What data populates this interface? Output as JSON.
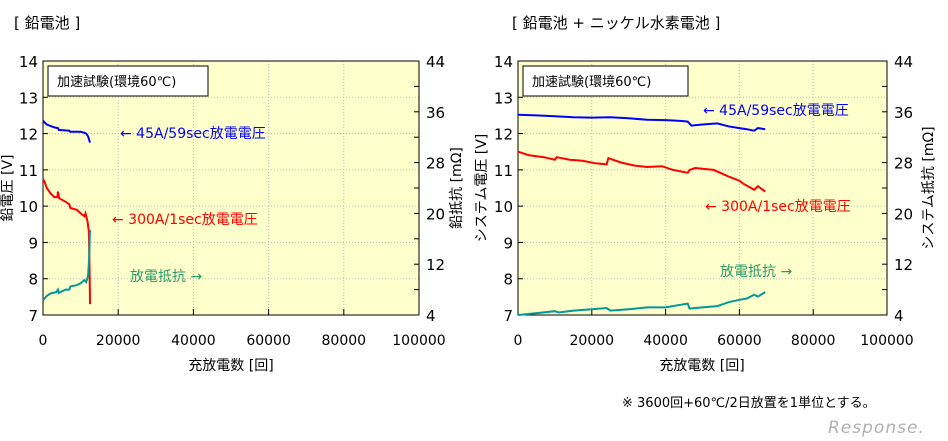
{
  "panels": [
    {
      "title": "[ 鉛電池 ]"
    },
    {
      "title": "[ 鉛電池 + ニッケル水素電池 ]"
    }
  ],
  "footnote": "※ 3600回+60℃/2日放置を1単位とする。",
  "watermark": "Response.",
  "colors": {
    "plot_bg": "#ffffcc",
    "v45": "#0000ff",
    "v300": "#ff0000",
    "resistance": "#009999",
    "label_resistance": "#2a9a6a"
  },
  "chart_data": [
    {
      "type": "line",
      "title": "[ 鉛電池 ]",
      "box_label": "加速試験(環境60℃)",
      "xlabel": "充放電数 [回]",
      "ylabel": "鉛電圧 [V]",
      "y2label": "鉛抵抗 [mΩ]",
      "xlim": [
        0,
        100000
      ],
      "xticks": [
        "0",
        "20000",
        "40000",
        "60000",
        "80000",
        "100000"
      ],
      "ylim": [
        7,
        14
      ],
      "yticks": [
        "7",
        "8",
        "9",
        "10",
        "11",
        "12",
        "13",
        "14"
      ],
      "y2lim": [
        4,
        44
      ],
      "y2ticks": [
        "4",
        "12",
        "20",
        "28",
        "36",
        "44"
      ],
      "grid": true,
      "series": [
        {
          "name": "45A/59sec放電電圧",
          "label": "← 45A/59sec放電電圧",
          "axis": "left",
          "color": "#0000ff",
          "x": [
            0,
            1000,
            3000,
            4000,
            4200,
            7000,
            7200,
            10000,
            11000,
            11500,
            12000,
            12500
          ],
          "y": [
            12.35,
            12.25,
            12.17,
            12.15,
            12.1,
            12.08,
            12.05,
            12.05,
            12.02,
            12.0,
            11.92,
            11.75
          ]
        },
        {
          "name": "300A/1sec放電電圧",
          "label": "← 300A/1sec放電電圧",
          "axis": "left",
          "color": "#ff0000",
          "x": [
            0,
            500,
            1000,
            2000,
            3000,
            3800,
            4000,
            4300,
            6000,
            7000,
            7300,
            9000,
            10000,
            11000,
            11300,
            11800,
            12200,
            12350,
            12450,
            12500
          ],
          "y": [
            10.75,
            10.65,
            10.5,
            10.35,
            10.25,
            10.25,
            10.4,
            10.22,
            10.12,
            10.05,
            9.95,
            9.9,
            9.8,
            9.72,
            9.8,
            9.6,
            9.3,
            8.5,
            7.8,
            7.3
          ]
        },
        {
          "name": "放電抵抗",
          "label": "放電抵抗 →",
          "axis": "right",
          "color": "#009999",
          "x": [
            0,
            1000,
            2000,
            3500,
            4000,
            4200,
            6000,
            7000,
            7300,
            9000,
            10000,
            11000,
            11500,
            12000,
            12300,
            12500
          ],
          "y": [
            6.3,
            7.0,
            7.4,
            7.6,
            8.0,
            7.5,
            8.0,
            8.0,
            8.5,
            8.7,
            9.0,
            9.5,
            9.2,
            10.2,
            13,
            17.4
          ]
        }
      ]
    },
    {
      "type": "line",
      "title": "[ 鉛電池 + ニッケル水素電池 ]",
      "box_label": "加速試験(環境60℃)",
      "xlabel": "充放電数 [回]",
      "ylabel": "システム電圧 [V]",
      "y2label": "システム抵抗 [mΩ]",
      "xlim": [
        0,
        100000
      ],
      "xticks": [
        "0",
        "20000",
        "40000",
        "60000",
        "80000",
        "100000"
      ],
      "ylim": [
        7,
        14
      ],
      "yticks": [
        "7",
        "8",
        "9",
        "10",
        "11",
        "12",
        "13",
        "14"
      ],
      "y2lim": [
        4,
        44
      ],
      "y2ticks": [
        "4",
        "12",
        "20",
        "28",
        "36",
        "44"
      ],
      "grid": true,
      "series": [
        {
          "name": "45A/59sec放電電圧",
          "label": "← 45A/59sec放電電圧",
          "axis": "left",
          "color": "#0000ff",
          "x": [
            0,
            5000,
            10000,
            15000,
            20000,
            25000,
            30000,
            35000,
            40000,
            44000,
            46000,
            47000,
            50000,
            54000,
            57000,
            60000,
            62000,
            64000,
            65000,
            67000
          ],
          "y": [
            12.52,
            12.5,
            12.48,
            12.45,
            12.44,
            12.45,
            12.42,
            12.38,
            12.37,
            12.35,
            12.33,
            12.22,
            12.25,
            12.28,
            12.2,
            12.15,
            12.12,
            12.08,
            12.15,
            12.12
          ]
        },
        {
          "name": "300A/1sec放電電圧",
          "label": "← 300A/1sec放電電圧",
          "axis": "left",
          "color": "#ff0000",
          "x": [
            0,
            3000,
            7000,
            10000,
            10500,
            14000,
            17500,
            21000,
            24000,
            24500,
            28000,
            31500,
            35000,
            39000,
            42000,
            46000,
            46500,
            48000,
            53000,
            57000,
            60000,
            61000,
            64000,
            65000,
            67000
          ],
          "y": [
            11.5,
            11.4,
            11.35,
            11.28,
            11.35,
            11.28,
            11.25,
            11.18,
            11.15,
            11.32,
            11.2,
            11.12,
            11.08,
            11.1,
            11.0,
            10.92,
            11.0,
            11.05,
            11.0,
            10.82,
            10.7,
            10.62,
            10.45,
            10.55,
            10.4
          ]
        },
        {
          "name": "放電抵抗",
          "label": "放電抵抗 →",
          "axis": "right",
          "color": "#009999",
          "x": [
            0,
            5000,
            10000,
            11000,
            15000,
            20000,
            24000,
            25000,
            30000,
            35000,
            40000,
            44000,
            46000,
            46500,
            50000,
            54000,
            57000,
            60000,
            62000,
            64000,
            65000,
            67000
          ],
          "y": [
            4.0,
            4.3,
            4.6,
            4.4,
            4.7,
            4.9,
            5.1,
            4.7,
            4.9,
            5.2,
            5.2,
            5.6,
            5.8,
            5.0,
            5.2,
            5.4,
            6.0,
            6.4,
            6.6,
            7.2,
            6.9,
            7.6
          ]
        }
      ]
    }
  ]
}
